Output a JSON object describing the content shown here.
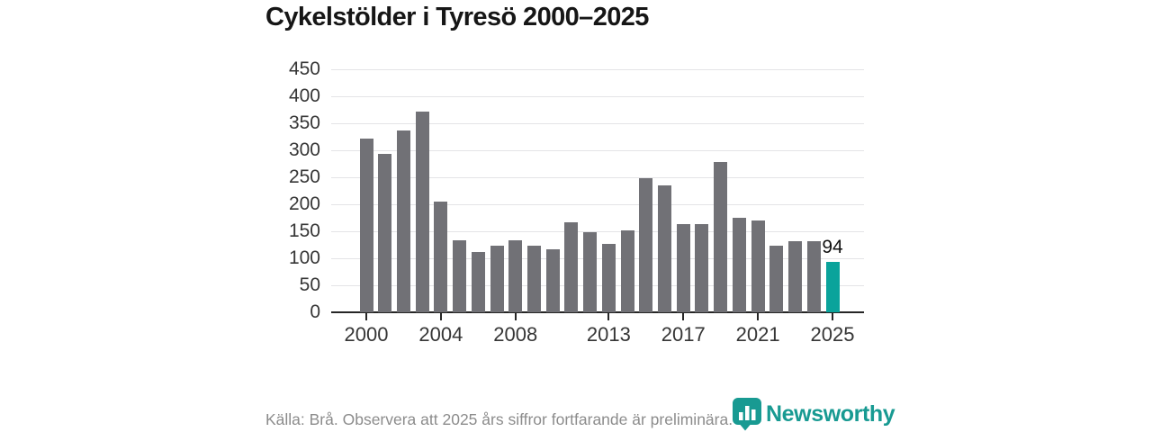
{
  "title": "Cykelstölder i Tyresö 2000–2025",
  "chart_data": {
    "type": "bar",
    "title": "Cykelstölder i Tyresö 2000–2025",
    "categories": [
      "2000",
      "2001",
      "2002",
      "2003",
      "2004",
      "2005",
      "2006",
      "2007",
      "2008",
      "2009",
      "2010",
      "2011",
      "2012",
      "2013",
      "2014",
      "2015",
      "2016",
      "2017",
      "2018",
      "2019",
      "2020",
      "2021",
      "2022",
      "2023",
      "2024",
      "2025"
    ],
    "values": [
      321,
      293,
      336,
      371,
      205,
      134,
      112,
      123,
      134,
      124,
      117,
      167,
      148,
      127,
      151,
      248,
      235,
      163,
      163,
      279,
      175,
      170,
      124,
      132,
      131,
      94
    ],
    "xlabel": "",
    "ylabel": "",
    "ylim": [
      0,
      450
    ],
    "yticks": [
      0,
      50,
      100,
      150,
      200,
      250,
      300,
      350,
      400,
      450
    ],
    "xtick_labels": [
      "2000",
      "2004",
      "2008",
      "2013",
      "2017",
      "2021",
      "2025"
    ],
    "xtick_indices": [
      0,
      4,
      8,
      13,
      17,
      21,
      25
    ],
    "grid": true,
    "legend_position": "none",
    "bar_color": "#717176",
    "highlight_index": 25,
    "highlight_color": "#0aa39b",
    "highlight_value_label": "94"
  },
  "footer": {
    "source_note": "Källa: Brå. Observera att 2025 års siffror fortfarande är preliminära."
  },
  "branding": {
    "name": "Newsworthy",
    "color": "#189a92"
  }
}
